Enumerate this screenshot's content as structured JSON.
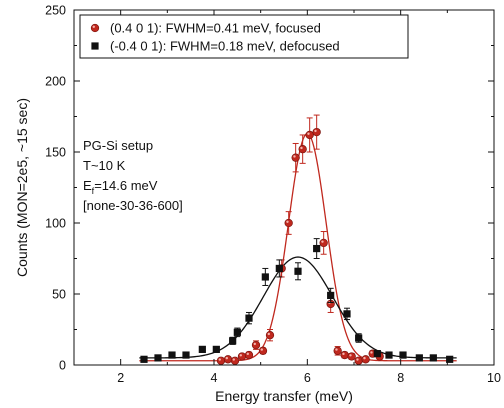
{
  "chart_data": {
    "type": "scatter",
    "xlabel": "Energy transfer (meV)",
    "ylabel": "Counts (MON=2e5, ~15 sec)",
    "xlim": [
      1,
      10
    ],
    "ylim": [
      0,
      250
    ],
    "x_ticks": [
      2,
      4,
      6,
      8,
      10
    ],
    "y_ticks": [
      0,
      50,
      100,
      150,
      200,
      250
    ],
    "x_tick_labels": [
      "2",
      "4",
      "6",
      "8",
      "10"
    ],
    "y_tick_labels": [
      "0",
      "50",
      "100",
      "150",
      "200",
      "250"
    ],
    "grid": false,
    "legend_position": "top-left",
    "series": [
      {
        "name": "(0.4 0 1): FWHM=0.41 meV, focused",
        "marker": "circle",
        "color": "#c0281e",
        "points": [
          {
            "x": 4.15,
            "y": 3,
            "err": 1
          },
          {
            "x": 4.3,
            "y": 4,
            "err": 1
          },
          {
            "x": 4.45,
            "y": 3,
            "err": 1
          },
          {
            "x": 4.6,
            "y": 6,
            "err": 1.5
          },
          {
            "x": 4.75,
            "y": 7,
            "err": 2
          },
          {
            "x": 4.9,
            "y": 14,
            "err": 3
          },
          {
            "x": 5.05,
            "y": 10,
            "err": 2
          },
          {
            "x": 5.2,
            "y": 21,
            "err": 4
          },
          {
            "x": 5.45,
            "y": 68,
            "err": 6
          },
          {
            "x": 5.6,
            "y": 100,
            "err": 8
          },
          {
            "x": 5.75,
            "y": 146,
            "err": 10
          },
          {
            "x": 5.9,
            "y": 152,
            "err": 10
          },
          {
            "x": 6.05,
            "y": 162,
            "err": 12
          },
          {
            "x": 6.2,
            "y": 164,
            "err": 12
          },
          {
            "x": 6.35,
            "y": 86,
            "err": 8
          },
          {
            "x": 6.5,
            "y": 43,
            "err": 6
          },
          {
            "x": 6.65,
            "y": 10,
            "err": 3
          },
          {
            "x": 6.8,
            "y": 7,
            "err": 2
          },
          {
            "x": 6.95,
            "y": 6,
            "err": 2
          },
          {
            "x": 7.1,
            "y": 3,
            "err": 1
          },
          {
            "x": 7.25,
            "y": 4,
            "err": 1
          },
          {
            "x": 7.4,
            "y": 8,
            "err": 2
          },
          {
            "x": 7.55,
            "y": 6,
            "err": 2
          }
        ],
        "fit": {
          "type": "gaussian",
          "amplitude": 160,
          "center": 6.0,
          "fwhm": 0.95,
          "baseline": 3
        }
      },
      {
        "name": "(-0.4 0 1): FWHM=0.18 meV, defocused",
        "marker": "square",
        "color": "#111111",
        "points": [
          {
            "x": 2.5,
            "y": 4,
            "err": 1
          },
          {
            "x": 2.8,
            "y": 5,
            "err": 1
          },
          {
            "x": 3.1,
            "y": 7,
            "err": 1.5
          },
          {
            "x": 3.4,
            "y": 7,
            "err": 1.5
          },
          {
            "x": 3.75,
            "y": 11,
            "err": 2
          },
          {
            "x": 4.05,
            "y": 11,
            "err": 2
          },
          {
            "x": 4.4,
            "y": 17,
            "err": 2.5
          },
          {
            "x": 4.5,
            "y": 23,
            "err": 3
          },
          {
            "x": 4.75,
            "y": 33,
            "err": 4
          },
          {
            "x": 5.1,
            "y": 62,
            "err": 6
          },
          {
            "x": 5.4,
            "y": 68,
            "err": 6
          },
          {
            "x": 5.8,
            "y": 66,
            "err": 6
          },
          {
            "x": 6.2,
            "y": 82,
            "err": 7
          },
          {
            "x": 6.5,
            "y": 49,
            "err": 5
          },
          {
            "x": 6.85,
            "y": 36,
            "err": 4
          },
          {
            "x": 7.1,
            "y": 19,
            "err": 3
          },
          {
            "x": 7.5,
            "y": 8,
            "err": 2
          },
          {
            "x": 7.75,
            "y": 7,
            "err": 1.5
          },
          {
            "x": 8.05,
            "y": 7,
            "err": 1.5
          },
          {
            "x": 8.4,
            "y": 5,
            "err": 1
          },
          {
            "x": 8.7,
            "y": 5,
            "err": 1
          },
          {
            "x": 9.05,
            "y": 4,
            "err": 1
          }
        ],
        "fit": {
          "type": "gaussian",
          "amplitude": 71,
          "center": 5.8,
          "fwhm": 1.75,
          "baseline": 5
        }
      }
    ],
    "annotation": {
      "lines": [
        {
          "text": "PG-Si setup"
        },
        {
          "text": "T~10 K"
        },
        {
          "text": "E",
          "sub": "f",
          "tail": "=14.6 meV"
        },
        {
          "text": "[none-30-36-600]"
        }
      ]
    }
  }
}
